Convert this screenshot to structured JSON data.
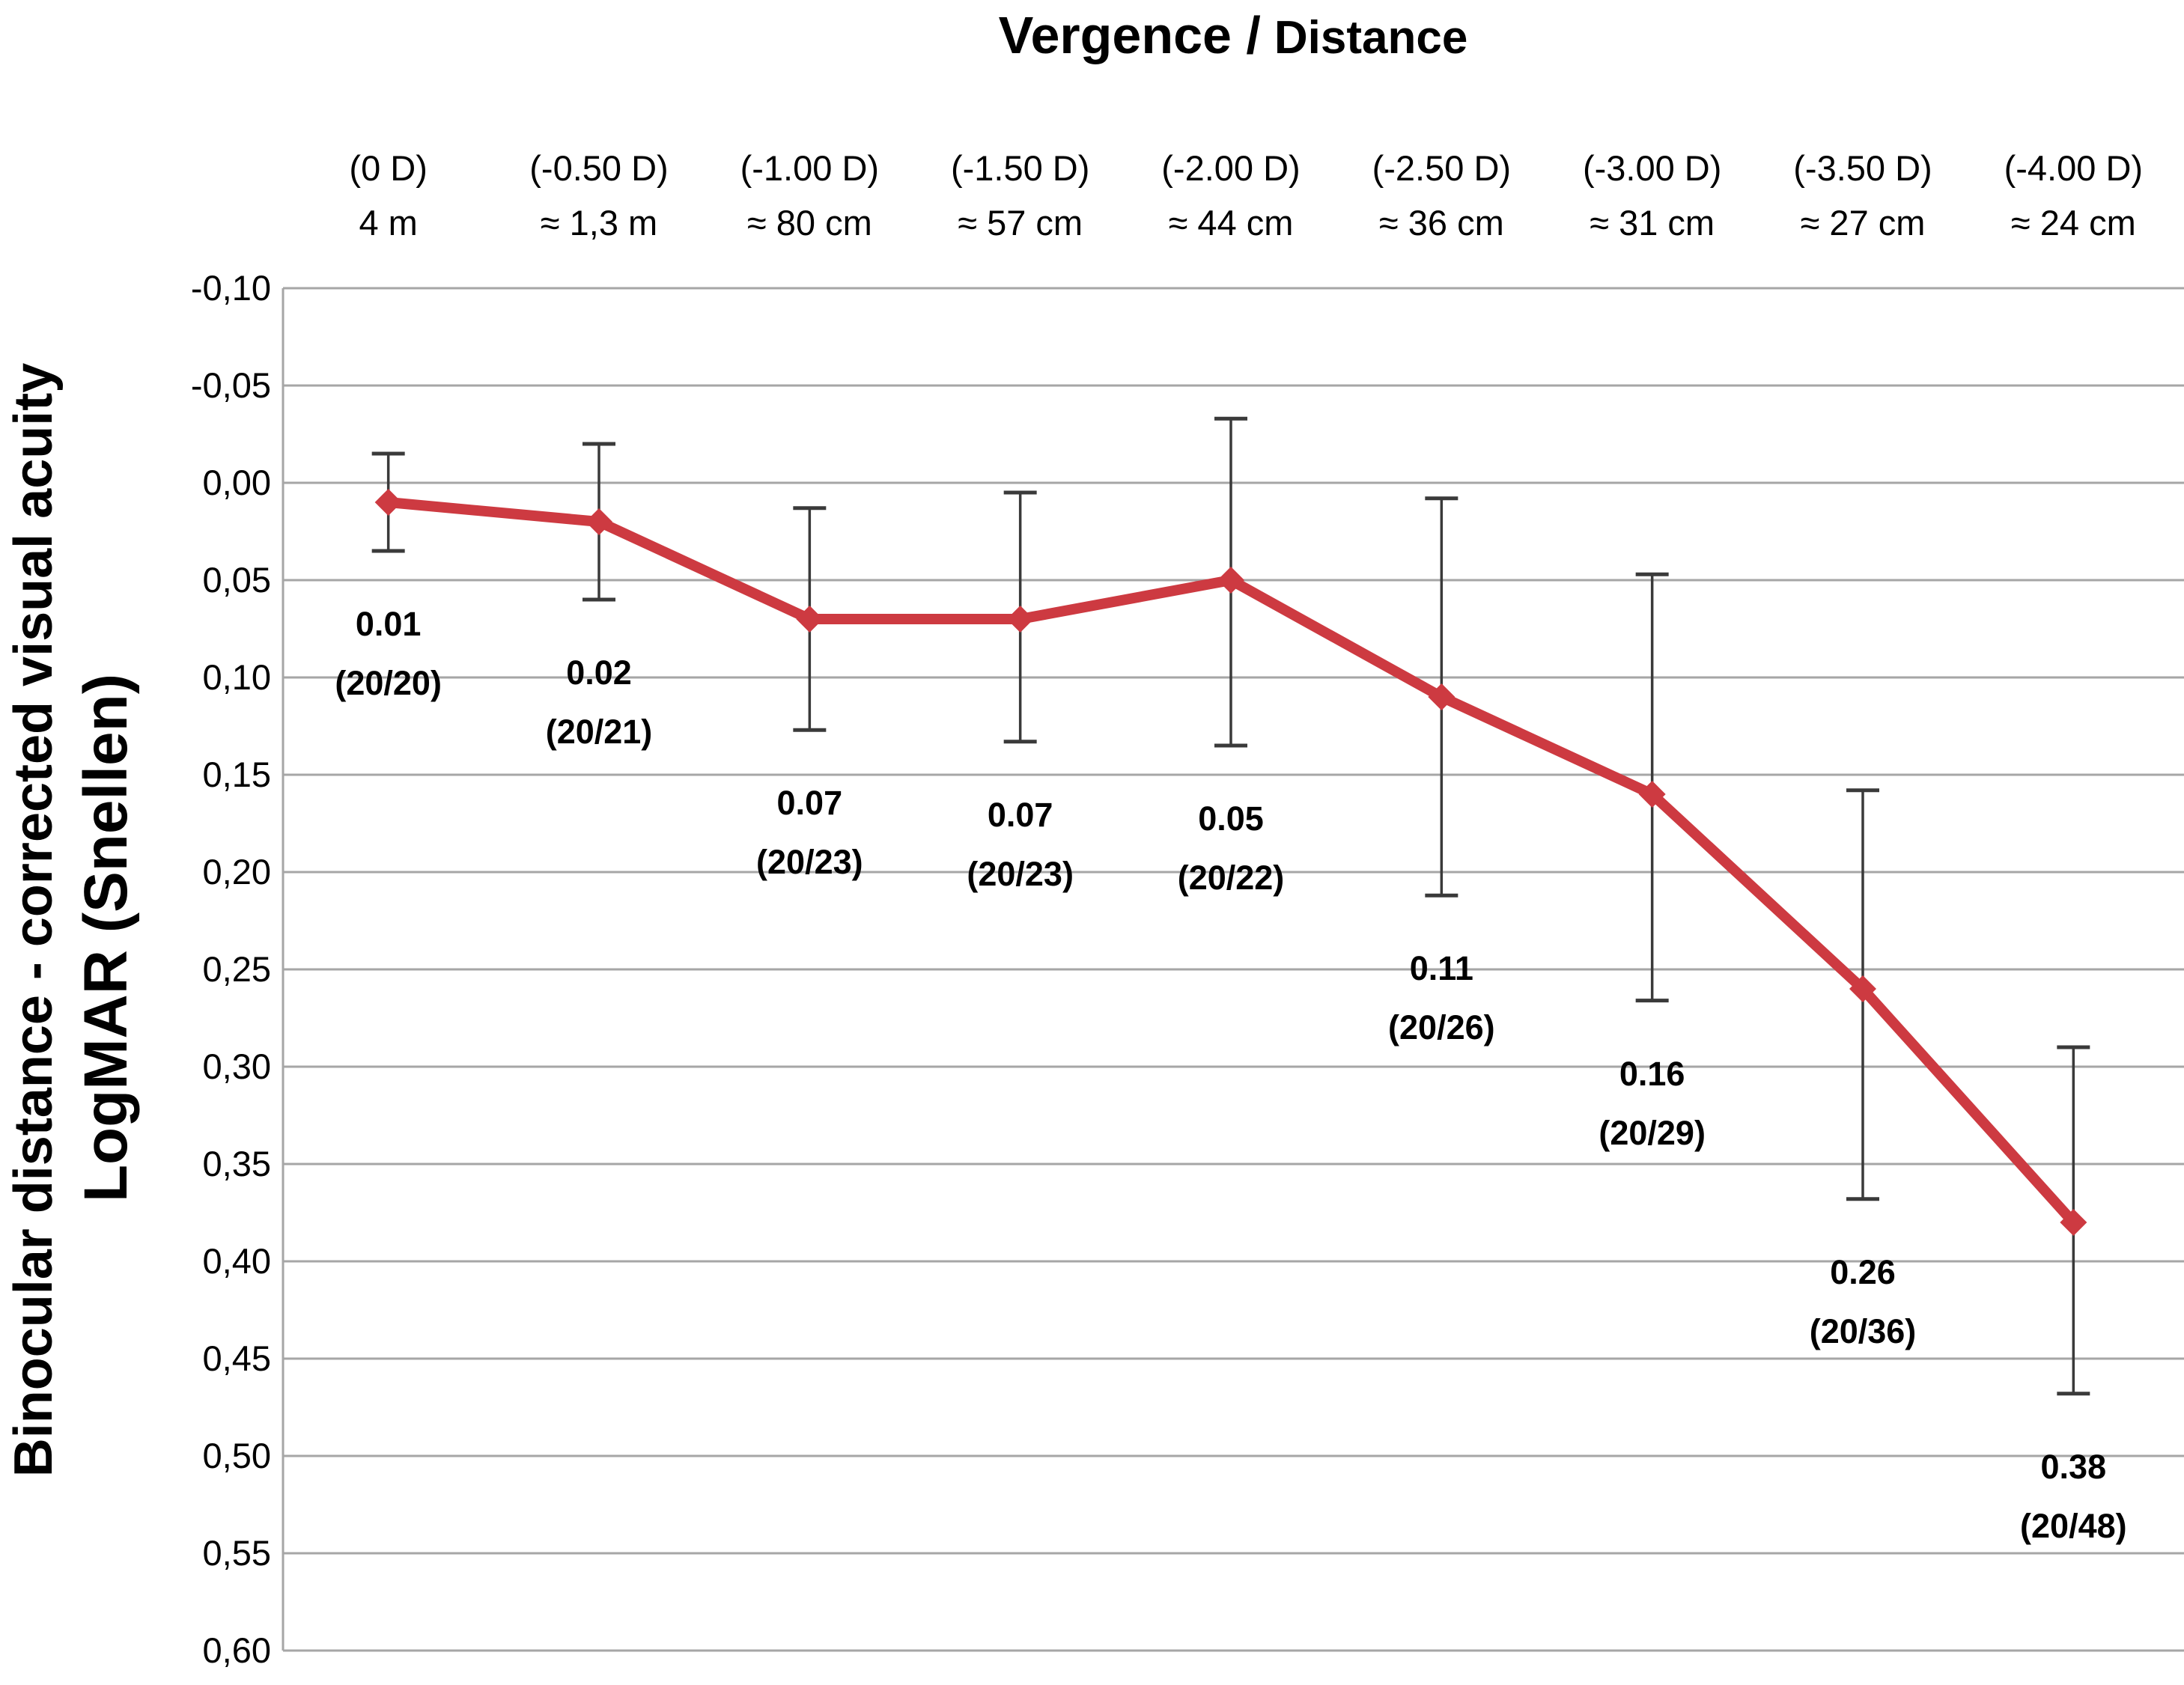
{
  "title": {
    "part1": "Vergence /",
    "part2": "Distance"
  },
  "y_axis": {
    "label_line1": "Binocular distance - corrected visual acuity",
    "label_line2": "LogMAR (Snellen)",
    "tick_labels": [
      "-0,10",
      "-0,05",
      "0,00",
      "0,05",
      "0,10",
      "0,15",
      "0,20",
      "0,25",
      "0,30",
      "0,35",
      "0,40",
      "0,45",
      "0,50",
      "0,55",
      "0,60"
    ]
  },
  "x_axis": {
    "columns": [
      {
        "vergence": "(0 D)",
        "distance": "4 m"
      },
      {
        "vergence": "(-0.50 D)",
        "distance": "≈ 1,3 m"
      },
      {
        "vergence": "(-1.00 D)",
        "distance": "≈ 80 cm"
      },
      {
        "vergence": "(-1.50 D)",
        "distance": "≈ 57 cm"
      },
      {
        "vergence": "(-2.00 D)",
        "distance": "≈ 44 cm"
      },
      {
        "vergence": "(-2.50 D)",
        "distance": "≈ 36 cm"
      },
      {
        "vergence": "(-3.00 D)",
        "distance": "≈ 31 cm"
      },
      {
        "vergence": "(-3.50 D)",
        "distance": "≈ 27 cm"
      },
      {
        "vergence": "(-4.00 D)",
        "distance": "≈ 24 cm"
      }
    ]
  },
  "chart_data": {
    "type": "line",
    "title": "Vergence / Distance",
    "ylabel": "Binocular distance - corrected visual acuity LogMAR (Snellen)",
    "categories": [
      "(0 D) 4 m",
      "(-0.50 D) ≈ 1,3 m",
      "(-1.00 D) ≈ 80 cm",
      "(-1.50 D) ≈ 57 cm",
      "(-2.00 D) ≈ 44 cm",
      "(-2.50 D) ≈ 36 cm",
      "(-3.00 D) ≈ 31 cm",
      "(-3.50 D) ≈ 27 cm",
      "(-4.00 D) ≈ 24 cm"
    ],
    "series": [
      {
        "name": "Binocular distance-corrected visual acuity (LogMAR)",
        "values": [
          0.01,
          0.02,
          0.07,
          0.07,
          0.05,
          0.11,
          0.16,
          0.26,
          0.38
        ],
        "error_bar_top": [
          -0.015,
          -0.02,
          0.013,
          0.005,
          -0.033,
          0.008,
          0.047,
          0.158,
          0.29
        ],
        "error_bar_bottom": [
          0.035,
          0.06,
          0.127,
          0.133,
          0.135,
          0.212,
          0.266,
          0.368,
          0.468
        ]
      }
    ],
    "point_labels": [
      "0.01",
      "0.02",
      "0.07",
      "0.07",
      "0.05",
      "0.11",
      "0.16",
      "0.26",
      "0.38"
    ],
    "point_sublabels": [
      "(20/20)",
      "(20/21)",
      "(20/23)",
      "(20/23)",
      "(20/22)",
      "(20/26)",
      "(20/29)",
      "(20/36)",
      "(20/48)"
    ],
    "ylim": [
      -0.1,
      0.6
    ],
    "ytick_step": 0.05,
    "y_axis_reversed": true,
    "grid": "horizontal",
    "legend_position": "none",
    "marker": "diamond"
  },
  "style": {
    "series_color": "#cd3a41",
    "grid_color": "#a6a6a6",
    "error_bar_color": "#3a3a3a",
    "text_color": "#000000",
    "background": "#ffffff"
  }
}
